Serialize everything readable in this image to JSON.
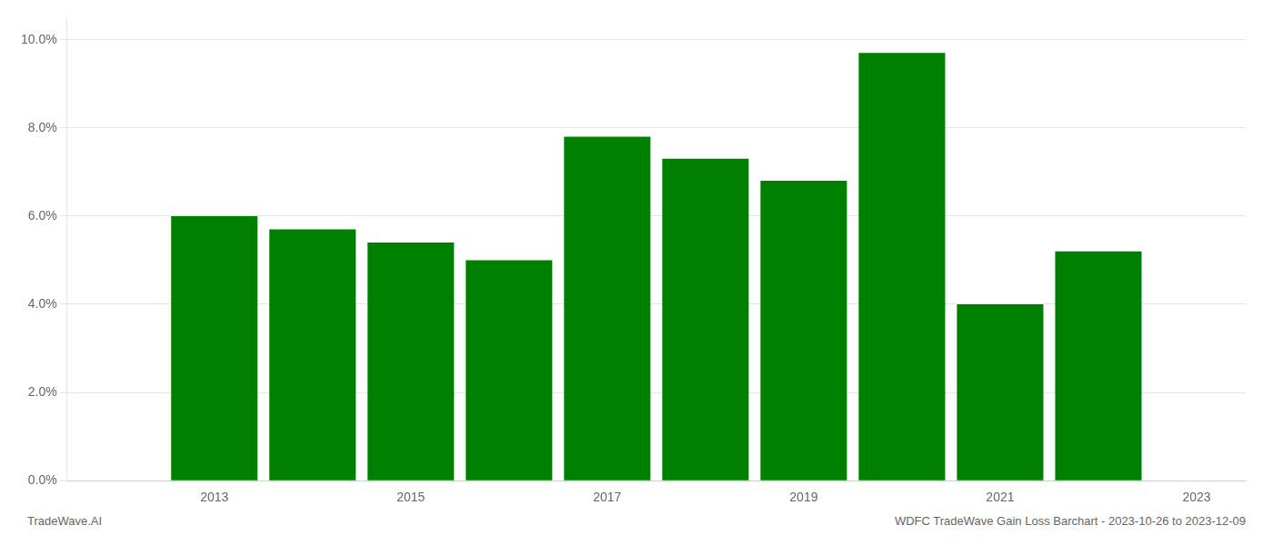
{
  "chart_data": {
    "type": "bar",
    "x": [
      2013,
      2014,
      2015,
      2016,
      2017,
      2018,
      2019,
      2020,
      2021,
      2022
    ],
    "values": [
      0.06,
      0.057,
      0.054,
      0.05,
      0.078,
      0.073,
      0.068,
      0.097,
      0.04,
      0.052
    ],
    "color": "#008000",
    "xlim": [
      2011.5,
      2023.5
    ],
    "xticks": [
      2013,
      2015,
      2017,
      2019,
      2021,
      2023
    ],
    "ylim": [
      0.0,
      0.105
    ],
    "yticks": [
      {
        "value": 0.0,
        "label": "0.0%"
      },
      {
        "value": 0.02,
        "label": "2.0%"
      },
      {
        "value": 0.04,
        "label": "4.0%"
      },
      {
        "value": 0.06,
        "label": "6.0%"
      },
      {
        "value": 0.08,
        "label": "8.0%"
      },
      {
        "value": 0.1,
        "label": "10.0%"
      }
    ],
    "grid": true,
    "annotations": [
      "TradeWave.AI",
      "WDFC TradeWave Gain Loss Barchart - 2023-10-26 to 2023-12-09"
    ]
  }
}
